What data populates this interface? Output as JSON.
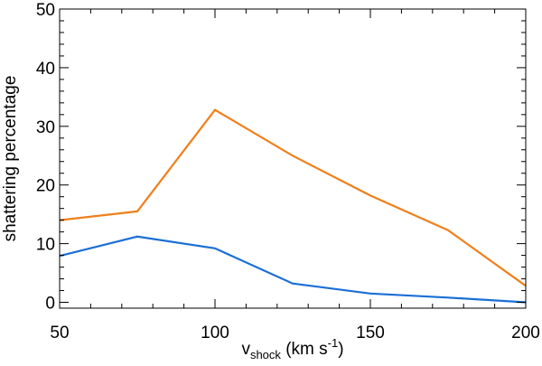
{
  "chart_data": {
    "type": "line",
    "title": "",
    "xlabel": {
      "main": "v",
      "subscript": "shock",
      "unit_open": " (km s",
      "superscript": "-1",
      "unit_close": ")"
    },
    "ylabel": "shattering percentage",
    "xlim": [
      50,
      200
    ],
    "ylim": [
      -1,
      50
    ],
    "x_ticks": [
      50,
      100,
      150,
      200
    ],
    "y_ticks": [
      0,
      10,
      20,
      30,
      40,
      50
    ],
    "x_ticks_minor": [
      60,
      70,
      80,
      90,
      110,
      120,
      130,
      140,
      160,
      170,
      180,
      190
    ],
    "y_ticks_minor": [
      2,
      4,
      6,
      8,
      12,
      14,
      16,
      18,
      22,
      24,
      26,
      28,
      32,
      34,
      36,
      38,
      42,
      44,
      46,
      48
    ],
    "grid": false,
    "legend": "none",
    "series": [
      {
        "color": "#f07f1a",
        "x": [
          50,
          75,
          100,
          125,
          150,
          175,
          200
        ],
        "values": [
          14.0,
          15.5,
          32.8,
          25.0,
          18.2,
          12.3,
          2.8
        ]
      },
      {
        "color": "#1a6fd6",
        "x": [
          50,
          75,
          100,
          125,
          150,
          175,
          200
        ],
        "values": [
          7.9,
          11.2,
          9.2,
          3.2,
          1.5,
          0.8,
          0.0
        ]
      }
    ]
  }
}
